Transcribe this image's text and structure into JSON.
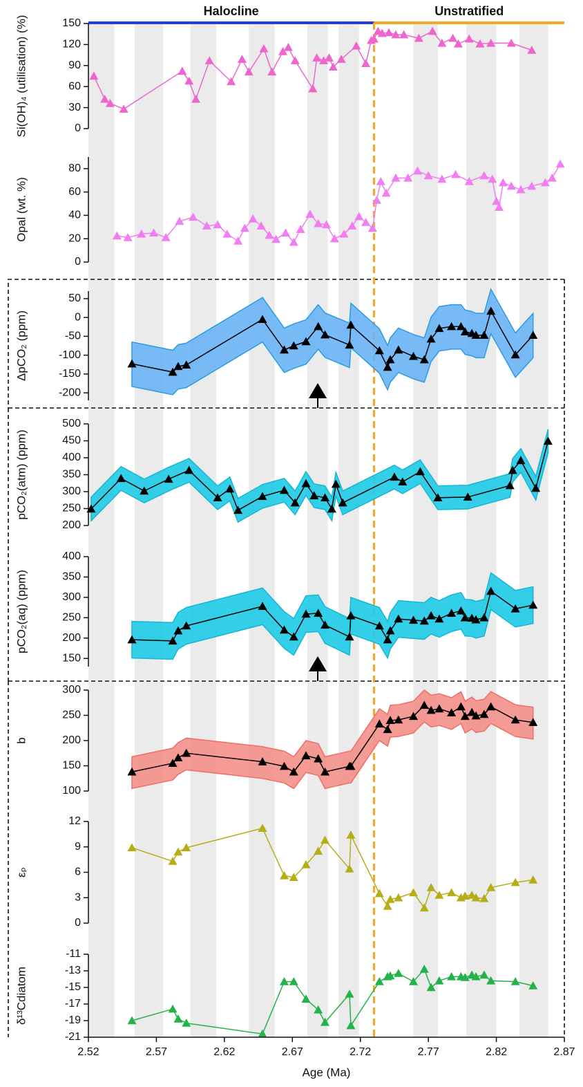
{
  "regimes": [
    {
      "label": "Halocline",
      "start": 2.52,
      "end": 2.73,
      "color": "#1f3fe0"
    },
    {
      "label": "Unstratified",
      "start": 2.73,
      "end": 2.87,
      "color": "#f5a623"
    }
  ],
  "shaded_intervals": [
    [
      2.52,
      2.539
    ],
    [
      2.554,
      2.575
    ],
    [
      2.595,
      2.614
    ],
    [
      2.638,
      2.657
    ],
    [
      2.681,
      2.696
    ],
    [
      2.704,
      2.719
    ],
    [
      2.759,
      2.777
    ],
    [
      2.798,
      2.82
    ],
    [
      2.837,
      2.858
    ]
  ],
  "chart_data": [
    {
      "type": "line",
      "ylabel": "Si(OH)₄ (utilisation) (%)",
      "color": "#ee66cc",
      "xlim": [
        2.52,
        2.87
      ],
      "ylim": [
        0,
        150
      ],
      "yticks": [
        0,
        30,
        60,
        90,
        120,
        150
      ],
      "x": [
        2.524,
        2.532,
        2.536,
        2.546,
        2.589,
        2.594,
        2.599,
        2.609,
        2.625,
        2.633,
        2.638,
        2.649,
        2.655,
        2.663,
        2.667,
        2.672,
        2.685,
        2.688,
        2.693,
        2.697,
        2.7,
        2.706,
        2.717,
        2.724,
        2.728,
        2.73,
        2.733,
        2.736,
        2.741,
        2.746,
        2.752,
        2.763,
        2.773,
        2.78,
        2.788,
        2.792,
        2.8,
        2.808,
        2.816,
        2.831,
        2.846
      ],
      "values": [
        75,
        42,
        36,
        28,
        82,
        68,
        42,
        97,
        67,
        99,
        81,
        114,
        81,
        110,
        116,
        97,
        57,
        101,
        97,
        101,
        88,
        99,
        118,
        93,
        126,
        128,
        139,
        136,
        137,
        134,
        134,
        129,
        139,
        122,
        129,
        121,
        128,
        121,
        122,
        122,
        112
      ]
    },
    {
      "type": "line",
      "ylabel": "Opal (wt. %)",
      "color": "#f07ef0",
      "xlim": [
        2.52,
        2.87
      ],
      "ylim": [
        0,
        90
      ],
      "yticks": [
        0,
        20,
        40,
        60,
        80
      ],
      "x": [
        2.541,
        2.549,
        2.559,
        2.568,
        2.577,
        2.587,
        2.597,
        2.607,
        2.615,
        2.622,
        2.63,
        2.635,
        2.641,
        2.647,
        2.653,
        2.658,
        2.665,
        2.671,
        2.676,
        2.683,
        2.689,
        2.695,
        2.701,
        2.708,
        2.714,
        2.719,
        2.724,
        2.729,
        2.732,
        2.735,
        2.739,
        2.746,
        2.755,
        2.762,
        2.77,
        2.78,
        2.79,
        2.8,
        2.811,
        2.817,
        2.82,
        2.822,
        2.825,
        2.831,
        2.838,
        2.846,
        2.856,
        2.861,
        2.867
      ],
      "values": [
        22.5,
        21,
        24,
        25,
        21,
        35,
        38.5,
        31,
        32,
        24,
        18,
        29,
        37,
        31,
        23,
        19.5,
        25,
        17,
        28,
        41,
        33,
        32,
        20,
        24,
        31,
        39,
        34,
        29,
        53,
        69,
        59,
        72,
        72,
        78,
        74,
        71,
        75,
        69,
        74,
        71,
        52,
        47,
        68,
        65,
        62,
        65,
        68,
        72,
        84
      ]
    },
    {
      "type": "band-line",
      "ylabel": "ΔpCO₂ (ppm)",
      "color": "#000000",
      "band_fill": "#6ab4f5",
      "band_stroke": "#2a9de0",
      "xlim": [
        2.52,
        2.87
      ],
      "ylim": [
        -220,
        70
      ],
      "yticks": [
        -200,
        -150,
        -100,
        -50,
        0,
        50
      ],
      "x": [
        2.552,
        2.582,
        2.586,
        2.592,
        2.648,
        2.664,
        2.671,
        2.68,
        2.689,
        2.694,
        2.712,
        2.713,
        2.734,
        2.74,
        2.742,
        2.748,
        2.759,
        2.767,
        2.772,
        2.778,
        2.787,
        2.794,
        2.797,
        2.802,
        2.805,
        2.811,
        2.816,
        2.834,
        2.847
      ],
      "values": [
        -123,
        -145,
        -130,
        -126,
        -5,
        -86,
        -75,
        -64,
        -24,
        -46,
        -73,
        -20,
        -88,
        -132,
        -112,
        -86,
        -103,
        -112,
        -57,
        -29,
        -24,
        -24,
        -38,
        -42,
        -47,
        -47,
        17,
        -99,
        -47
      ],
      "upper": [
        -65,
        -87,
        -72,
        -68,
        53,
        -28,
        -17,
        -6,
        34,
        12,
        -15,
        38,
        -30,
        -74,
        -54,
        -28,
        -45,
        -54,
        1,
        29,
        34,
        34,
        20,
        16,
        11,
        11,
        75,
        -41,
        11
      ],
      "lower": [
        -183,
        -205,
        -190,
        -186,
        -65,
        -146,
        -135,
        -124,
        -84,
        -106,
        -133,
        -80,
        -148,
        -192,
        -172,
        -146,
        -163,
        -172,
        -117,
        -89,
        -84,
        -84,
        -98,
        -102,
        -107,
        -107,
        -43,
        -159,
        -107
      ]
    },
    {
      "type": "band-line",
      "ylabel": "pCO₂(atm) (ppm)",
      "color": "#000000",
      "band_fill": "#1ecbe8",
      "band_stroke": "#19b5d4",
      "xlim": [
        2.52,
        2.87
      ],
      "ylim": [
        200,
        500
      ],
      "yticks": [
        200,
        250,
        300,
        350,
        400,
        450,
        500
      ],
      "x": [
        2.522,
        2.544,
        2.561,
        2.579,
        2.594,
        2.615,
        2.624,
        2.63,
        2.648,
        2.664,
        2.672,
        2.68,
        2.686,
        2.694,
        2.699,
        2.702,
        2.707,
        2.745,
        2.751,
        2.764,
        2.777,
        2.799,
        2.83,
        2.832,
        2.838,
        2.849,
        2.858
      ],
      "values": [
        249,
        339,
        302,
        337,
        363,
        282,
        308,
        245,
        286,
        304,
        267,
        324,
        288,
        282,
        249,
        322,
        267,
        343,
        329,
        359,
        282,
        284,
        318,
        363,
        392,
        310,
        449
      ],
      "upper": [
        284,
        374,
        337,
        372,
        398,
        317,
        343,
        280,
        321,
        339,
        302,
        359,
        323,
        317,
        284,
        357,
        302,
        378,
        364,
        394,
        317,
        319,
        353,
        398,
        427,
        345,
        484
      ],
      "lower": [
        214,
        304,
        267,
        302,
        328,
        247,
        273,
        210,
        251,
        269,
        232,
        289,
        253,
        247,
        214,
        287,
        232,
        308,
        294,
        324,
        247,
        249,
        283,
        328,
        357,
        275,
        414
      ]
    },
    {
      "type": "band-line",
      "ylabel": "pCO₂(aq) (ppm)",
      "color": "#000000",
      "band_fill": "#1ecbe8",
      "band_stroke": "#19b5d4",
      "xlim": [
        2.52,
        2.87
      ],
      "ylim": [
        130,
        400
      ],
      "yticks": [
        150,
        200,
        250,
        300,
        350,
        400
      ],
      "x": [
        2.552,
        2.582,
        2.586,
        2.592,
        2.648,
        2.664,
        2.671,
        2.68,
        2.689,
        2.694,
        2.712,
        2.713,
        2.734,
        2.74,
        2.742,
        2.748,
        2.759,
        2.767,
        2.772,
        2.778,
        2.787,
        2.794,
        2.797,
        2.802,
        2.805,
        2.811,
        2.816,
        2.834,
        2.847
      ],
      "values": [
        196,
        193,
        218,
        230,
        278,
        220,
        203,
        259,
        261,
        232,
        203,
        255,
        230,
        196,
        218,
        247,
        244,
        242,
        255,
        247,
        261,
        267,
        250,
        249,
        245,
        250,
        315,
        272,
        281
      ],
      "upper": [
        241,
        238,
        263,
        275,
        323,
        265,
        248,
        304,
        306,
        277,
        248,
        300,
        275,
        241,
        263,
        292,
        289,
        287,
        300,
        292,
        306,
        312,
        295,
        294,
        290,
        295,
        360,
        317,
        326
      ],
      "lower": [
        151,
        148,
        173,
        185,
        233,
        175,
        158,
        214,
        216,
        187,
        158,
        210,
        185,
        151,
        173,
        202,
        199,
        197,
        210,
        202,
        216,
        222,
        205,
        204,
        200,
        205,
        270,
        227,
        236
      ]
    },
    {
      "type": "band-line",
      "ylabel": "b",
      "color": "#000000",
      "band_fill": "#f4908a",
      "band_stroke": "#ee6e66",
      "xlim": [
        2.52,
        2.87
      ],
      "ylim": [
        100,
        300
      ],
      "yticks": [
        100,
        150,
        200,
        250,
        300
      ],
      "x": [
        2.552,
        2.582,
        2.586,
        2.592,
        2.648,
        2.664,
        2.671,
        2.68,
        2.689,
        2.694,
        2.712,
        2.713,
        2.734,
        2.74,
        2.742,
        2.748,
        2.759,
        2.767,
        2.772,
        2.778,
        2.787,
        2.794,
        2.797,
        2.802,
        2.805,
        2.811,
        2.816,
        2.834,
        2.847
      ],
      "values": [
        138,
        155,
        166,
        175,
        158,
        149,
        138,
        170,
        164,
        138,
        149,
        149,
        233,
        222,
        240,
        241,
        248,
        270,
        260,
        263,
        255,
        267,
        248,
        256,
        249,
        252,
        267,
        241,
        236
      ],
      "upper": [
        168,
        185,
        196,
        205,
        188,
        179,
        168,
        200,
        194,
        168,
        179,
        179,
        263,
        252,
        270,
        271,
        278,
        300,
        290,
        293,
        285,
        297,
        278,
        286,
        279,
        282,
        297,
        271,
        266
      ],
      "lower": [
        105,
        122,
        133,
        142,
        125,
        116,
        105,
        137,
        131,
        105,
        116,
        116,
        200,
        189,
        207,
        208,
        215,
        237,
        227,
        230,
        222,
        234,
        215,
        223,
        216,
        219,
        234,
        208,
        203
      ]
    },
    {
      "type": "line",
      "ylabel": "εₚ",
      "color": "#b5ae17",
      "xlim": [
        2.52,
        2.87
      ],
      "ylim": [
        0,
        12
      ],
      "yticks": [
        0,
        3,
        6,
        9,
        12
      ],
      "x": [
        2.552,
        2.582,
        2.586,
        2.592,
        2.648,
        2.664,
        2.671,
        2.68,
        2.689,
        2.694,
        2.712,
        2.713,
        2.734,
        2.74,
        2.742,
        2.748,
        2.759,
        2.767,
        2.772,
        2.778,
        2.787,
        2.794,
        2.797,
        2.802,
        2.805,
        2.811,
        2.816,
        2.834,
        2.847
      ],
      "values": [
        8.9,
        7.3,
        8.4,
        8.9,
        11.2,
        5.6,
        5.4,
        6.9,
        8.5,
        9.8,
        6.4,
        10.4,
        3.5,
        2.0,
        2.8,
        3.0,
        3.6,
        1.8,
        4.2,
        3.3,
        3.6,
        3.0,
        3.2,
        3.3,
        3.0,
        2.9,
        4.2,
        4.8,
        5.1
      ]
    },
    {
      "type": "line",
      "ylabel": "δ¹³Cdiatom",
      "color": "#22b34a",
      "xlim": [
        2.52,
        2.87
      ],
      "ylim": [
        -21,
        -11
      ],
      "yticks": [
        -21,
        -19,
        -17,
        -15,
        -13,
        -11
      ],
      "xticks": [
        2.52,
        2.57,
        2.62,
        2.67,
        2.72,
        2.77,
        2.82,
        2.87
      ],
      "xlabel": "Age (Ma)",
      "x": [
        2.552,
        2.582,
        2.586,
        2.592,
        2.648,
        2.664,
        2.671,
        2.68,
        2.689,
        2.694,
        2.712,
        2.713,
        2.734,
        2.74,
        2.742,
        2.748,
        2.759,
        2.767,
        2.772,
        2.778,
        2.787,
        2.794,
        2.797,
        2.802,
        2.805,
        2.811,
        2.816,
        2.834,
        2.847
      ],
      "values": [
        -19.0,
        -17.6,
        -18.8,
        -19.3,
        -20.6,
        -14.3,
        -14.3,
        -16.4,
        -17.7,
        -19.2,
        -15.8,
        -19.6,
        -14.3,
        -13.7,
        -13.6,
        -13.3,
        -14.3,
        -12.8,
        -15.0,
        -14.2,
        -13.7,
        -13.7,
        -13.8,
        -13.5,
        -13.7,
        -13.5,
        -14.2,
        -14.3,
        -14.8
      ]
    }
  ]
}
